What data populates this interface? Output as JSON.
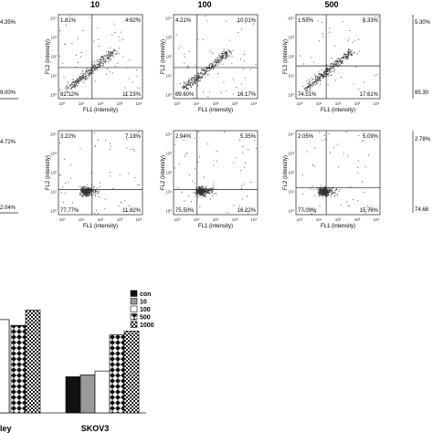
{
  "column_labels": [
    "10",
    "100",
    "500"
  ],
  "axis_labels": {
    "x": "FL1 (intensity)",
    "y": "FL2 (intensity)"
  },
  "tick_labels": [
    "10⁰",
    "10¹",
    "10²",
    "10³",
    "10⁴"
  ],
  "partial_left_labels": {
    "row1_ul": "4.35%",
    "row1_lr": "9.00%",
    "row2_ul": "4.72%",
    "row2_lr": "2.04%"
  },
  "partial_right_labels": {
    "row1_ul": "5.30%",
    "row1_ll": "85.30",
    "row2_ul": "2.78%",
    "row2_ll": "74.68"
  },
  "panels": [
    {
      "row": 1,
      "col": 0,
      "ul": "1.81%",
      "ur": "4.92%",
      "ll": "82.12%",
      "lr": "11.15%"
    },
    {
      "row": 1,
      "col": 1,
      "ul": "4.21%",
      "ur": "10.01%",
      "ll": "69.60%",
      "lr": "16.17%"
    },
    {
      "row": 1,
      "col": 2,
      "ul": "1.55%",
      "ur": "6.33%",
      "ll": "74.51%",
      "lr": "17.61%"
    },
    {
      "row": 2,
      "col": 0,
      "ul": "3.22%",
      "ur": "7.19%",
      "ll": "77.77%",
      "lr": "11.82%"
    },
    {
      "row": 2,
      "col": 1,
      "ul": "2.94%",
      "ur": "5.35%",
      "ll": "75.50%",
      "lr": "16.22%"
    },
    {
      "row": 2,
      "col": 2,
      "ul": "2.05%",
      "ur": "5.09%",
      "ll": "77.09%",
      "lr": "15.78%"
    }
  ],
  "chart_data": {
    "type": "bar",
    "categories": [
      "Hey",
      "SKOV3"
    ],
    "category_labels": [
      "ley",
      "SKOV3"
    ],
    "series": [
      {
        "name": "con",
        "values": [
          null,
          19
        ]
      },
      {
        "name": "10",
        "values": [
          null,
          20
        ]
      },
      {
        "name": "100",
        "values": [
          null,
          22
        ]
      },
      {
        "name": "500",
        "values": [
          null,
          41
        ]
      },
      {
        "name": "1000",
        "values": [
          null,
          43
        ]
      }
    ],
    "partial_values_hey": [
      49,
      49,
      49,
      46,
      54
    ],
    "ylim": [
      0,
      60
    ],
    "legend_position": "top-right",
    "patterns": [
      "solid-black",
      "solid-gray",
      "white",
      "diamond",
      "grid"
    ]
  }
}
